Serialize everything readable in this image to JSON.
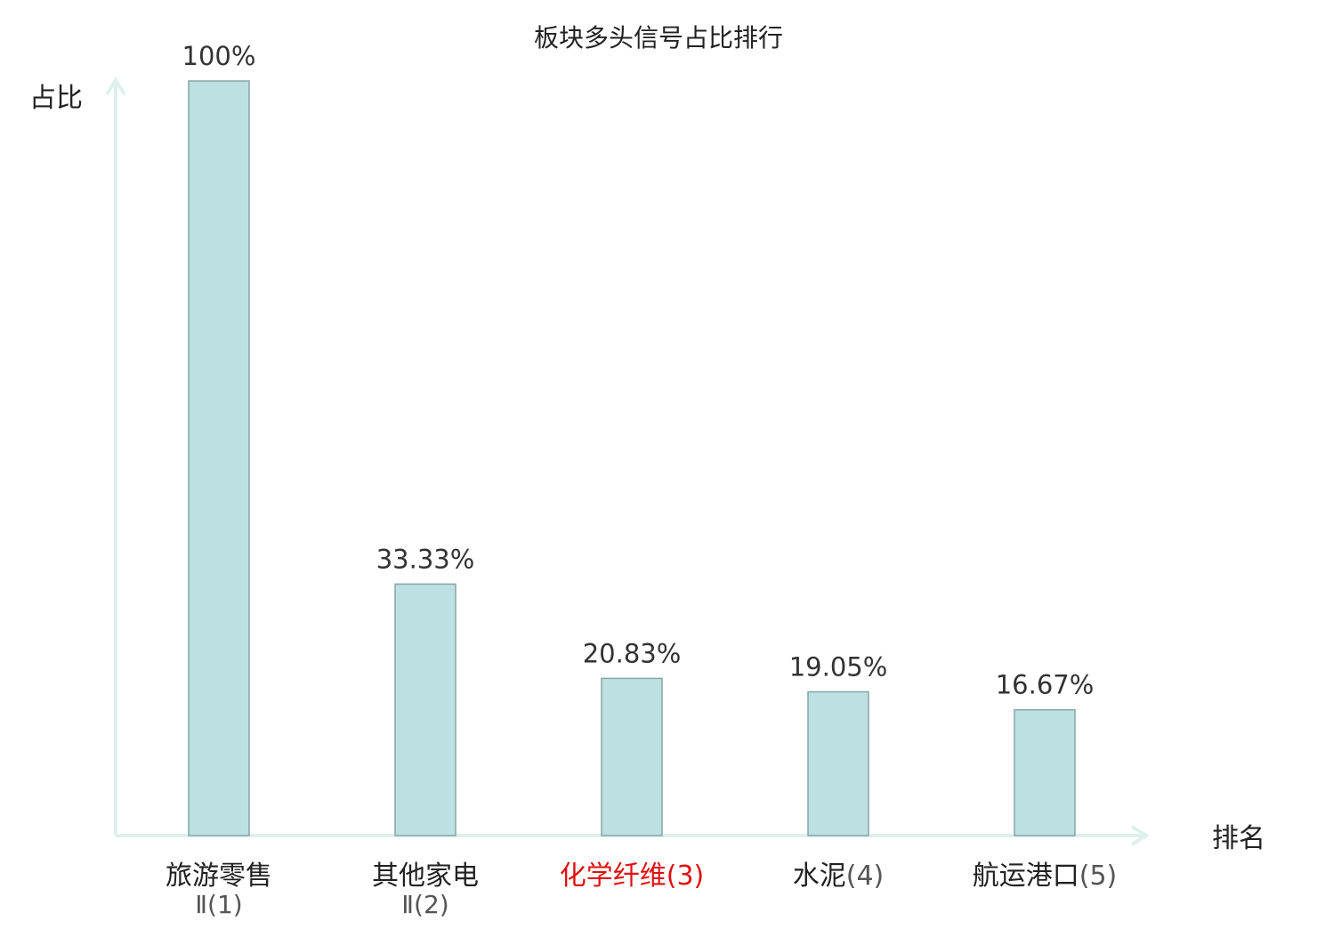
{
  "chart_data": {
    "type": "bar",
    "title": "板块多头信号占比排行",
    "ylabel": "占比",
    "xlabel": "排名",
    "ylim": [
      0,
      100
    ],
    "grid": false,
    "categories": [
      {
        "name": "旅游零售",
        "rank": "Ⅱ(1)",
        "highlight": false
      },
      {
        "name": "其他家电",
        "rank": "Ⅱ(2)",
        "highlight": false
      },
      {
        "name": "化学纤维",
        "rank": "(3)",
        "highlight": true
      },
      {
        "name": "水泥",
        "rank": "(4)",
        "highlight": false
      },
      {
        "name": "航运港口",
        "rank": "(5)",
        "highlight": false
      }
    ],
    "values": [
      100,
      33.33,
      20.83,
      19.05,
      16.67
    ],
    "value_labels": [
      "100%",
      "33.33%",
      "20.83%",
      "19.05%",
      "16.67%"
    ],
    "colors": {
      "bar_fill": "#bde0e2",
      "bar_stroke": "#86a5a5",
      "axis": "#ddf0ee",
      "text": "#222222",
      "value_text": "#333333",
      "rank_text": "#555555",
      "highlight": "#e01010"
    }
  }
}
